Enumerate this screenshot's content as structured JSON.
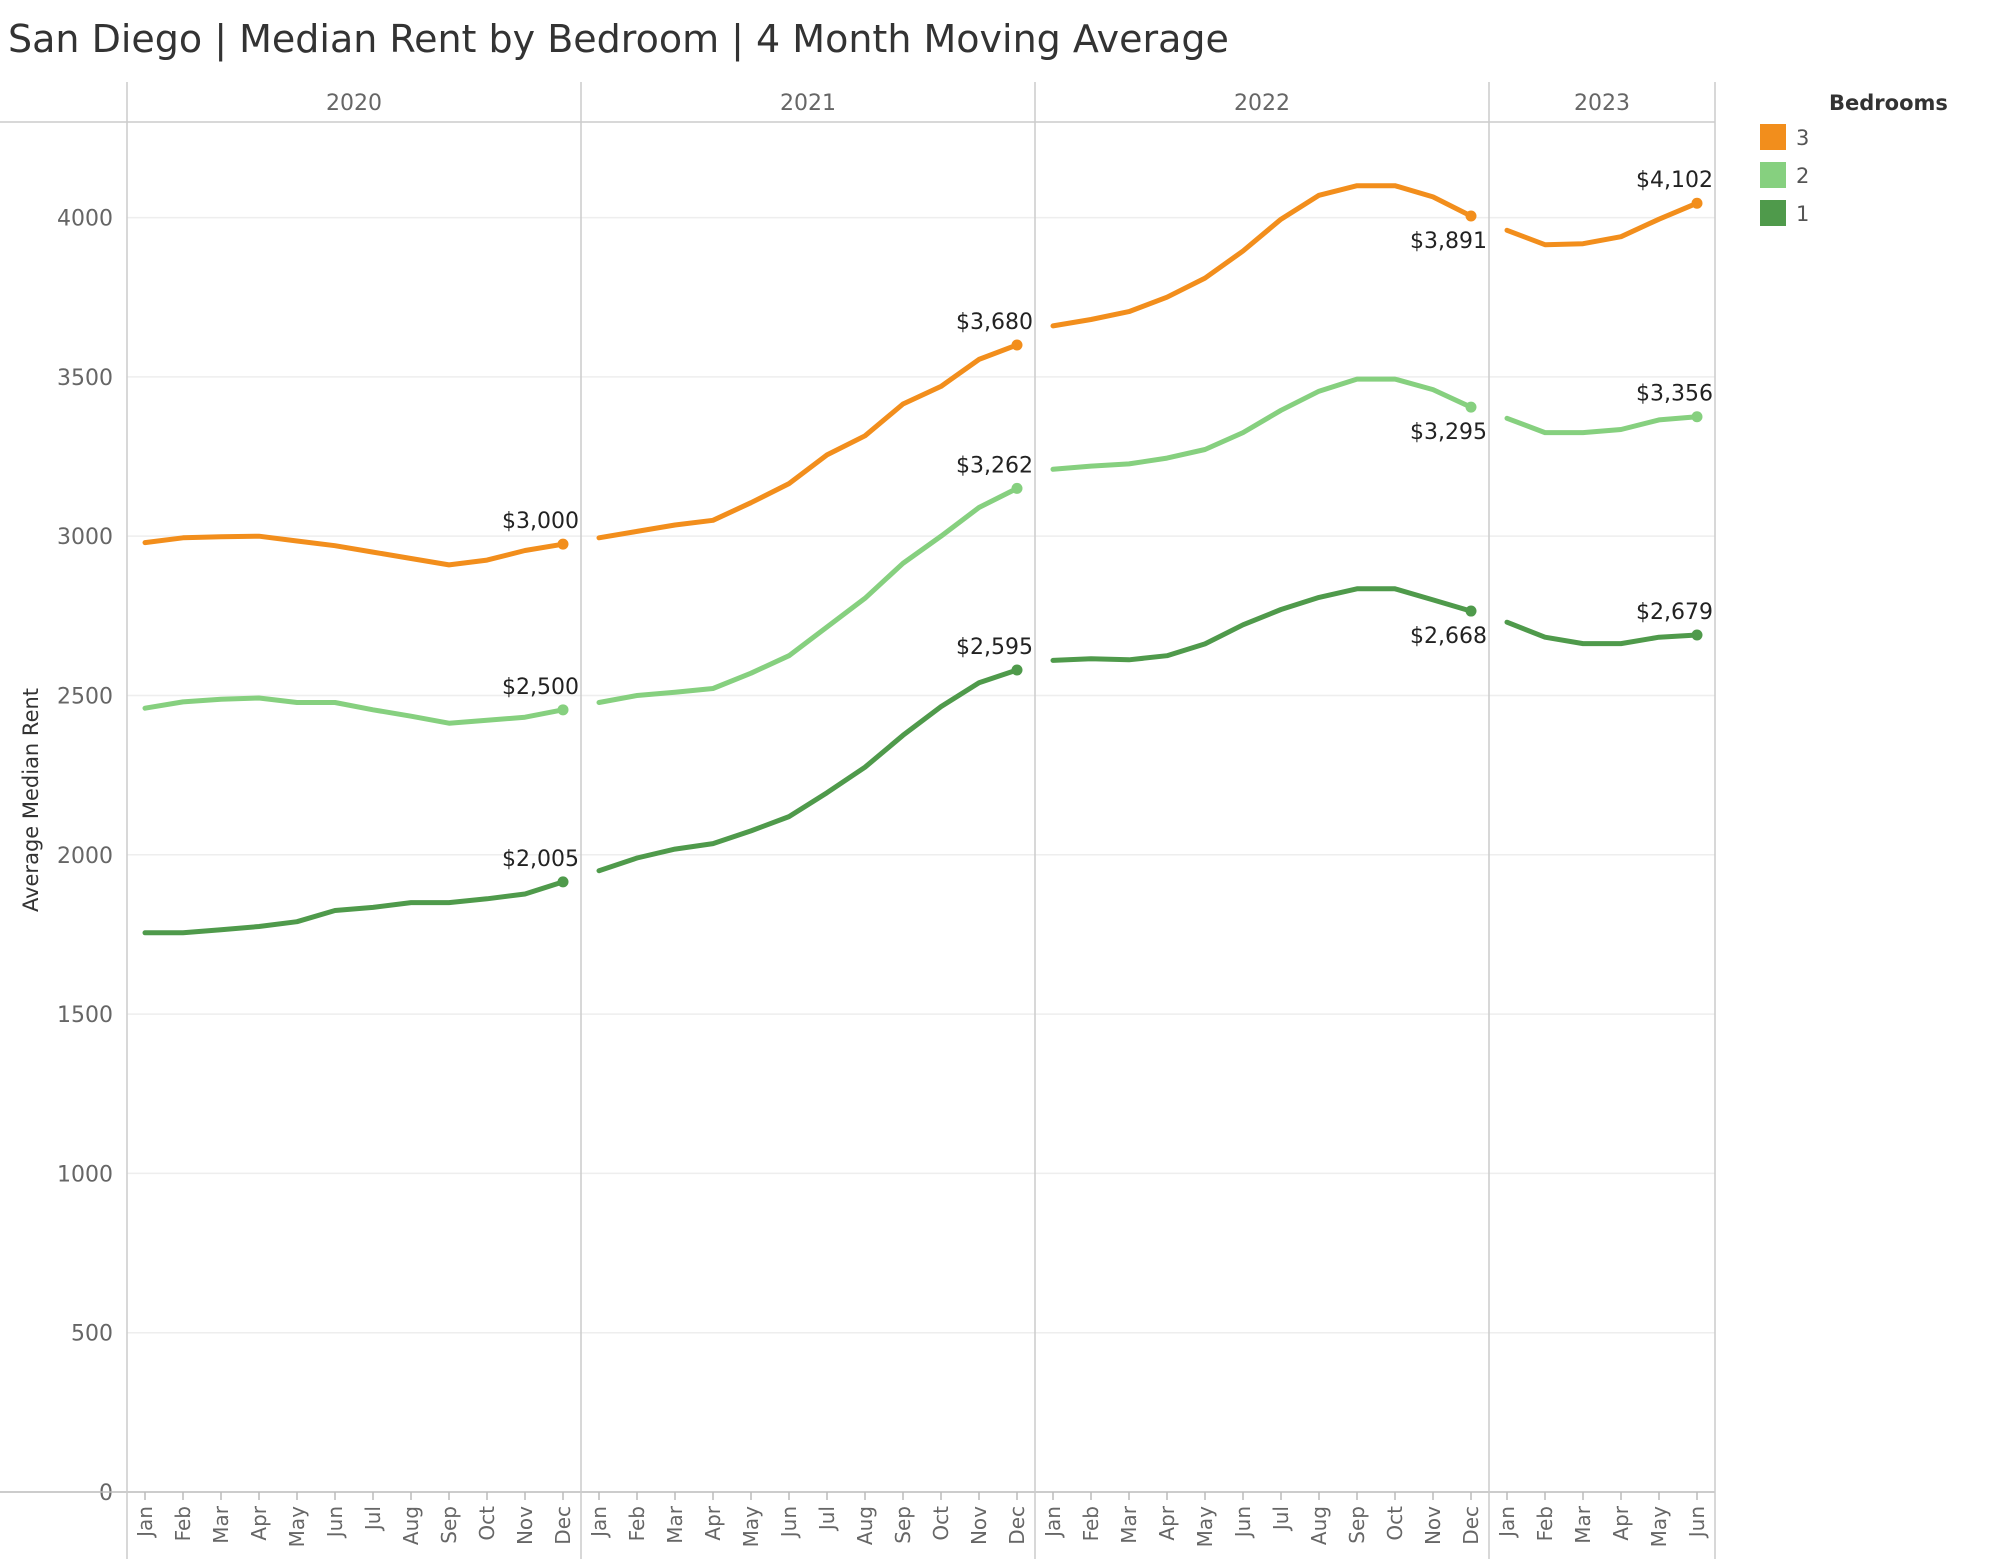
{
  "chart_data": {
    "type": "line",
    "title": "San Diego | Median Rent by Bedroom | 4 Month Moving Average",
    "ylabel": "Average Median Rent",
    "xlabel": "",
    "ylim": [
      0,
      4300
    ],
    "yticks": [
      0,
      500,
      1000,
      1500,
      2000,
      2500,
      3000,
      3500,
      4000
    ],
    "grid": true,
    "legend": {
      "title": "Bedrooms",
      "placement": "right",
      "order": [
        "3",
        "2",
        "1"
      ]
    },
    "years": [
      {
        "year": "2020",
        "months": [
          "Jan",
          "Feb",
          "Mar",
          "Apr",
          "May",
          "Jun",
          "Jul",
          "Aug",
          "Sep",
          "Oct",
          "Nov",
          "Dec"
        ]
      },
      {
        "year": "2021",
        "months": [
          "Jan",
          "Feb",
          "Mar",
          "Apr",
          "May",
          "Jun",
          "Jul",
          "Aug",
          "Sep",
          "Oct",
          "Nov",
          "Dec"
        ]
      },
      {
        "year": "2022",
        "months": [
          "Jan",
          "Feb",
          "Mar",
          "Apr",
          "May",
          "Jun",
          "Jul",
          "Aug",
          "Sep",
          "Oct",
          "Nov",
          "Dec"
        ]
      },
      {
        "year": "2023",
        "months": [
          "Jan",
          "Feb",
          "Mar",
          "Apr",
          "May",
          "Jun"
        ]
      }
    ],
    "series": [
      {
        "name": "3",
        "color": "#f28e1c",
        "values": [
          [
            2980,
            2995,
            2998,
            3000,
            2985,
            2970,
            2950,
            2930,
            2910,
            2925,
            2955,
            2975
          ],
          [
            2995,
            3015,
            3035,
            3050,
            3105,
            3165,
            3255,
            3315,
            3415,
            3470,
            3555,
            3600
          ],
          [
            3660,
            3680,
            3705,
            3750,
            3810,
            3895,
            3995,
            4070,
            4100,
            4100,
            4065,
            4005
          ],
          [
            3960,
            3915,
            3918,
            3940,
            3995,
            4045
          ]
        ],
        "end_labels": [
          "$3,000",
          "$3,680",
          "$3,891",
          "$4,102"
        ]
      },
      {
        "name": "2",
        "color": "#86d07f",
        "values": [
          [
            2460,
            2480,
            2488,
            2492,
            2478,
            2478,
            2455,
            2435,
            2413,
            2422,
            2432,
            2455
          ],
          [
            2478,
            2500,
            2510,
            2522,
            2570,
            2625,
            2715,
            2805,
            2915,
            3000,
            3090,
            3150
          ],
          [
            3210,
            3220,
            3227,
            3245,
            3272,
            3325,
            3395,
            3455,
            3493,
            3493,
            3460,
            3405
          ],
          [
            3370,
            3325,
            3325,
            3335,
            3365,
            3375
          ]
        ],
        "end_labels": [
          "$2,500",
          "$3,262",
          "$3,295",
          "$3,356"
        ]
      },
      {
        "name": "1",
        "color": "#4f9a4b",
        "values": [
          [
            1755,
            1755,
            1765,
            1775,
            1790,
            1825,
            1835,
            1850,
            1850,
            1862,
            1877,
            1915
          ],
          [
            1950,
            1990,
            2018,
            2035,
            2075,
            2120,
            2195,
            2275,
            2375,
            2465,
            2540,
            2580
          ],
          [
            2610,
            2615,
            2612,
            2625,
            2662,
            2722,
            2770,
            2808,
            2835,
            2835,
            2800,
            2765
          ],
          [
            2730,
            2683,
            2663,
            2663,
            2683,
            2690
          ]
        ],
        "end_labels": [
          "$2,005",
          "$2,595",
          "$2,668",
          "$2,679"
        ]
      }
    ]
  }
}
